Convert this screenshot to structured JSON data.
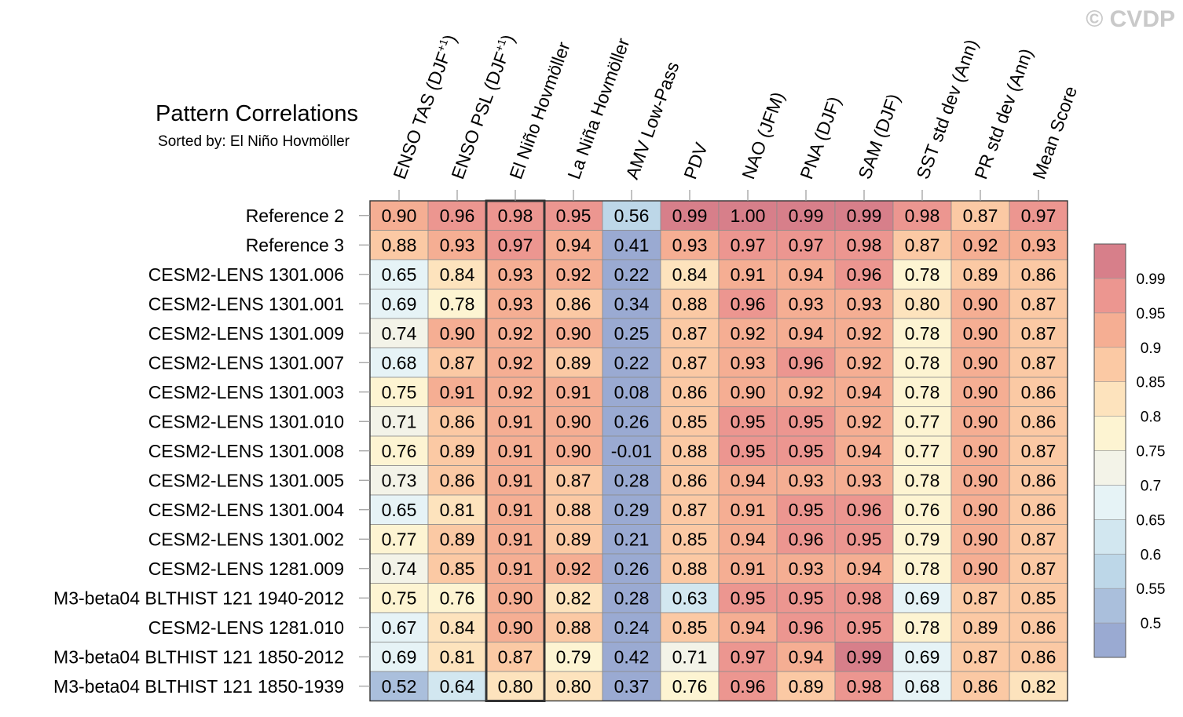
{
  "watermark": "© CVDP",
  "chart_data": {
    "type": "heatmap",
    "title": "Pattern Correlations",
    "subtitle": "Sorted by: El Niño Hovmöller",
    "highlight_column": 2,
    "columns": [
      "ENSO TAS (DJF+1)",
      "ENSO PSL (DJF+1)",
      "El Niño Hovmöller",
      "La Niña Hovmöller",
      "AMV Low-Pass",
      "PDV",
      "NAO (JFM)",
      "PNA (DJF)",
      "SAM (DJF)",
      "SST std dev (Ann)",
      "PR std dev (Ann)",
      "Mean Score"
    ],
    "rows": [
      "Reference 2",
      "Reference 3",
      "CESM2-LENS 1301.006",
      "CESM2-LENS 1301.001",
      "CESM2-LENS 1301.009",
      "CESM2-LENS 1301.007",
      "CESM2-LENS 1301.003",
      "CESM2-LENS 1301.010",
      "CESM2-LENS 1301.008",
      "CESM2-LENS 1301.005",
      "CESM2-LENS 1301.004",
      "CESM2-LENS 1301.002",
      "CESM2-LENS 1281.009",
      "M3-beta04 BLTHIST 121 1940-2012",
      "CESM2-LENS 1281.010",
      "M3-beta04 BLTHIST 121 1850-2012",
      "M3-beta04 BLTHIST 121 1850-1939"
    ],
    "values": [
      [
        "0.90",
        "0.96",
        "0.98",
        "0.95",
        "0.56",
        "0.99",
        "1.00",
        "0.99",
        "0.99",
        "0.98",
        "0.87",
        "0.97"
      ],
      [
        "0.88",
        "0.93",
        "0.97",
        "0.94",
        "0.41",
        "0.93",
        "0.97",
        "0.97",
        "0.98",
        "0.87",
        "0.92",
        "0.93"
      ],
      [
        "0.65",
        "0.84",
        "0.93",
        "0.92",
        "0.22",
        "0.84",
        "0.91",
        "0.94",
        "0.96",
        "0.78",
        "0.89",
        "0.86"
      ],
      [
        "0.69",
        "0.78",
        "0.93",
        "0.86",
        "0.34",
        "0.88",
        "0.96",
        "0.93",
        "0.93",
        "0.80",
        "0.90",
        "0.87"
      ],
      [
        "0.74",
        "0.90",
        "0.92",
        "0.90",
        "0.25",
        "0.87",
        "0.92",
        "0.94",
        "0.92",
        "0.78",
        "0.90",
        "0.87"
      ],
      [
        "0.68",
        "0.87",
        "0.92",
        "0.89",
        "0.22",
        "0.87",
        "0.93",
        "0.96",
        "0.92",
        "0.78",
        "0.90",
        "0.87"
      ],
      [
        "0.75",
        "0.91",
        "0.92",
        "0.91",
        "0.08",
        "0.86",
        "0.90",
        "0.92",
        "0.94",
        "0.78",
        "0.90",
        "0.86"
      ],
      [
        "0.71",
        "0.86",
        "0.91",
        "0.90",
        "0.26",
        "0.85",
        "0.95",
        "0.95",
        "0.92",
        "0.77",
        "0.90",
        "0.86"
      ],
      [
        "0.76",
        "0.89",
        "0.91",
        "0.90",
        "-0.01",
        "0.88",
        "0.95",
        "0.95",
        "0.94",
        "0.77",
        "0.90",
        "0.87"
      ],
      [
        "0.73",
        "0.86",
        "0.91",
        "0.87",
        "0.28",
        "0.86",
        "0.94",
        "0.93",
        "0.93",
        "0.78",
        "0.90",
        "0.86"
      ],
      [
        "0.65",
        "0.81",
        "0.91",
        "0.88",
        "0.29",
        "0.87",
        "0.91",
        "0.95",
        "0.96",
        "0.76",
        "0.90",
        "0.86"
      ],
      [
        "0.77",
        "0.89",
        "0.91",
        "0.89",
        "0.21",
        "0.85",
        "0.94",
        "0.96",
        "0.95",
        "0.79",
        "0.90",
        "0.87"
      ],
      [
        "0.74",
        "0.85",
        "0.91",
        "0.92",
        "0.26",
        "0.88",
        "0.91",
        "0.93",
        "0.94",
        "0.78",
        "0.90",
        "0.87"
      ],
      [
        "0.75",
        "0.76",
        "0.90",
        "0.82",
        "0.28",
        "0.63",
        "0.95",
        "0.95",
        "0.98",
        "0.69",
        "0.87",
        "0.85"
      ],
      [
        "0.67",
        "0.84",
        "0.90",
        "0.88",
        "0.24",
        "0.85",
        "0.94",
        "0.96",
        "0.95",
        "0.78",
        "0.89",
        "0.86"
      ],
      [
        "0.69",
        "0.81",
        "0.87",
        "0.79",
        "0.42",
        "0.71",
        "0.97",
        "0.94",
        "0.99",
        "0.69",
        "0.87",
        "0.86"
      ],
      [
        "0.52",
        "0.64",
        "0.80",
        "0.80",
        "0.37",
        "0.76",
        "0.96",
        "0.89",
        "0.98",
        "0.68",
        "0.86",
        "0.82"
      ]
    ],
    "colorbar": {
      "tick_labels": [
        "0.99",
        "0.95",
        "0.9",
        "0.85",
        "0.8",
        "0.75",
        "0.7",
        "0.65",
        "0.6",
        "0.55",
        "0.5"
      ],
      "levels": [
        0.99,
        0.95,
        0.9,
        0.85,
        0.8,
        0.75,
        0.7,
        0.65,
        0.6,
        0.55,
        0.5
      ],
      "colors_bottom_to_top": [
        "#9aaad2",
        "#aabfdc",
        "#bdd7e8",
        "#d2e7f0",
        "#e6f3f6",
        "#f3f3e8",
        "#fdf4d2",
        "#fde3bd",
        "#fbc9a4",
        "#f5ae93",
        "#ec9690",
        "#d77f8a"
      ]
    }
  }
}
